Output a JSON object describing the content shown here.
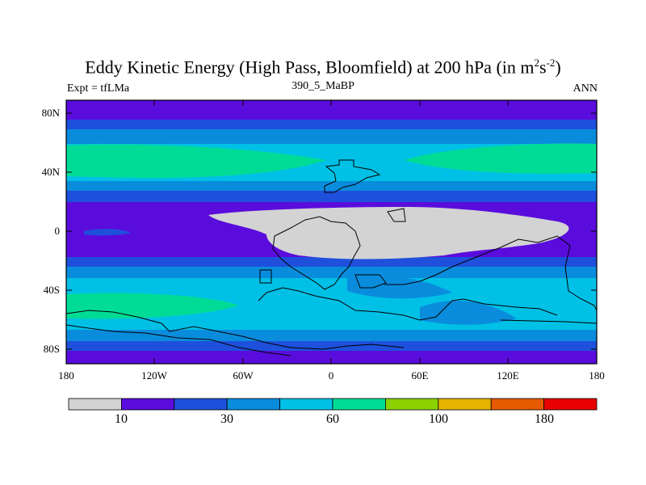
{
  "title": {
    "main": "Eddy Kinetic Energy (High Pass, Bloomfield) at 200 hPa (in m",
    "sup1": "2",
    "mid": "s",
    "sup2": "-2",
    "end": ")"
  },
  "subtitle": "390_5_MaBP",
  "left_label": "Expt = tfLMa",
  "right_label": "ANN",
  "lat_labels": [
    "80N",
    "40N",
    "0",
    "40S",
    "80S"
  ],
  "lon_labels": [
    "180",
    "120W",
    "60W",
    "0",
    "60E",
    "120E",
    "180"
  ],
  "colorbar": {
    "colors": [
      "#d3d3d3",
      "#5a0cdc",
      "#1e50dc",
      "#0a8cdc",
      "#00c0e6",
      "#00dc96",
      "#8cd200",
      "#e6b400",
      "#e65a00",
      "#e60000"
    ],
    "labels": [
      "10",
      "30",
      "60",
      "100",
      "180"
    ]
  }
}
